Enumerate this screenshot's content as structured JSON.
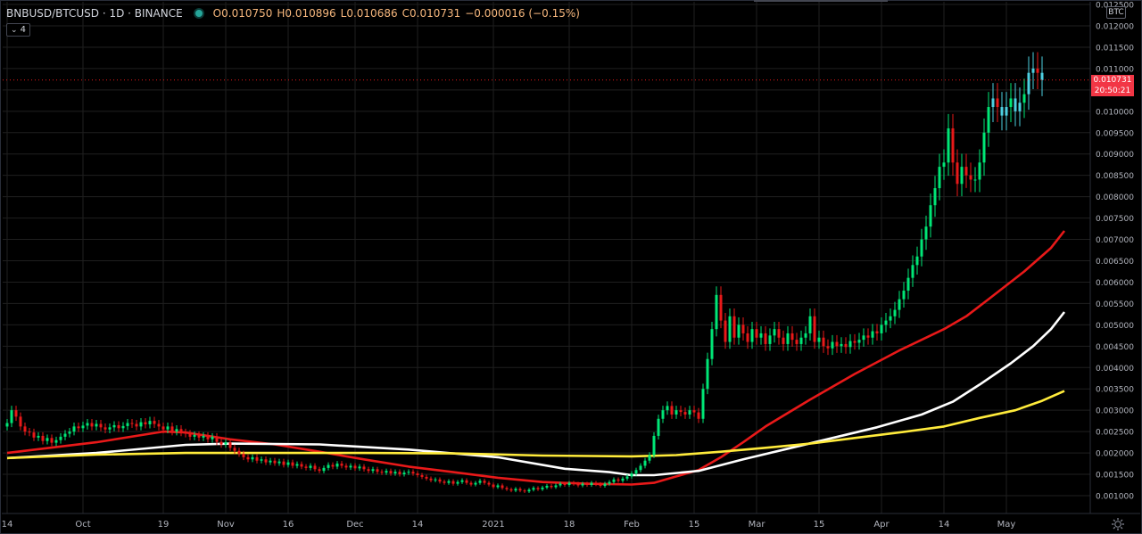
{
  "header": {
    "symbol": "BNBUSD/BTCUSD · 1D · BINANCE",
    "market_status_icon": "market-open-dot",
    "open": "O0.010750",
    "high": "H0.010896",
    "low": "L0.010686",
    "close": "C0.010731",
    "change": "−0.000016 (−0.15%)",
    "indicator_count": "4",
    "indicator_toggle_icon": "chevron-down-icon",
    "unit_label": "BTC"
  },
  "price_label": {
    "value": "0.010731",
    "countdown": "20:50:21"
  },
  "colors": {
    "background": "#000000",
    "up": "#00e676",
    "down": "#e81919",
    "recent": "#4dd0e1",
    "ma_red": "#e81919",
    "ma_white": "#ffffff",
    "ma_yellow": "#ffeb3b",
    "grid": "#1f1f1f"
  },
  "chart_data": {
    "type": "candlestick",
    "title": "BNBUSD/BTCUSD · 1D · BINANCE",
    "ylim": [
      0.0005,
      0.0126
    ],
    "y_ticks": [
      "0.001000",
      "0.001500",
      "0.002000",
      "0.002500",
      "0.003000",
      "0.003500",
      "0.004000",
      "0.004500",
      "0.005000",
      "0.005500",
      "0.006000",
      "0.006500",
      "0.007000",
      "0.007500",
      "0.008000",
      "0.008500",
      "0.009000",
      "0.009500",
      "0.010000",
      "0.010500",
      "0.011000",
      "0.011500",
      "0.012000",
      "0.012500"
    ],
    "x_tick_labels": [
      "14",
      "Oct",
      "19",
      "Nov",
      "16",
      "Dec",
      "14",
      "2021",
      "18",
      "Feb",
      "15",
      "Mar",
      "15",
      "Apr",
      "14",
      "May"
    ],
    "x_tick_indices": [
      0,
      17,
      35,
      49,
      63,
      78,
      92,
      109,
      126,
      140,
      154,
      168,
      182,
      196,
      210,
      224
    ],
    "last_price": 0.010731,
    "grid": true,
    "close": [
      0.0027,
      0.003,
      0.00285,
      0.00262,
      0.0025,
      0.00248,
      0.00236,
      0.0024,
      0.00228,
      0.00235,
      0.00224,
      0.0023,
      0.00238,
      0.00245,
      0.0025,
      0.00262,
      0.00258,
      0.00264,
      0.0027,
      0.00262,
      0.00268,
      0.0026,
      0.00255,
      0.0026,
      0.00265,
      0.00258,
      0.00263,
      0.0027,
      0.00268,
      0.00262,
      0.00272,
      0.00267,
      0.00275,
      0.00268,
      0.00262,
      0.00255,
      0.00262,
      0.0025,
      0.00256,
      0.00248,
      0.00245,
      0.00238,
      0.00242,
      0.00236,
      0.0024,
      0.00232,
      0.00238,
      0.00226,
      0.0022,
      0.00225,
      0.00212,
      0.00205,
      0.00198,
      0.0019,
      0.00185,
      0.0019,
      0.00182,
      0.00185,
      0.00178,
      0.00182,
      0.00176,
      0.0018,
      0.00172,
      0.00178,
      0.0017,
      0.00174,
      0.00168,
      0.00165,
      0.0017,
      0.00162,
      0.00158,
      0.00165,
      0.00172,
      0.00168,
      0.00175,
      0.0017,
      0.00166,
      0.0017,
      0.00164,
      0.00168,
      0.00162,
      0.00158,
      0.00162,
      0.00156,
      0.00154,
      0.00158,
      0.00152,
      0.00156,
      0.0015,
      0.00154,
      0.00156,
      0.00152,
      0.00148,
      0.00144,
      0.0014,
      0.00136,
      0.00138,
      0.00133,
      0.0013,
      0.00134,
      0.00128,
      0.00132,
      0.00136,
      0.0013,
      0.00126,
      0.0013,
      0.00135,
      0.0013,
      0.00126,
      0.0012,
      0.00124,
      0.00118,
      0.00115,
      0.00112,
      0.00116,
      0.00112,
      0.0011,
      0.00114,
      0.00118,
      0.00115,
      0.00119,
      0.00123,
      0.0012,
      0.00124,
      0.00128,
      0.00125,
      0.0013,
      0.00128,
      0.00124,
      0.00128,
      0.00125,
      0.0013,
      0.00127,
      0.00123,
      0.00128,
      0.00132,
      0.00138,
      0.00135,
      0.0014,
      0.00145,
      0.00152,
      0.0016,
      0.0017,
      0.00182,
      0.00195,
      0.0024,
      0.0028,
      0.003,
      0.0031,
      0.0029,
      0.003,
      0.00296,
      0.0029,
      0.003,
      0.00295,
      0.0028,
      0.0035,
      0.0042,
      0.0049,
      0.0057,
      0.0051,
      0.0046,
      0.0052,
      0.0047,
      0.005,
      0.0048,
      0.0046,
      0.0049,
      0.0047,
      0.0048,
      0.00455,
      0.00475,
      0.0049,
      0.0047,
      0.00455,
      0.0048,
      0.00465,
      0.00455,
      0.0047,
      0.0048,
      0.0052,
      0.0046,
      0.0047,
      0.0045,
      0.00445,
      0.0046,
      0.0045,
      0.00455,
      0.00448,
      0.00462,
      0.00458,
      0.00465,
      0.00475,
      0.0047,
      0.00485,
      0.0048,
      0.005,
      0.0051,
      0.0052,
      0.00535,
      0.0056,
      0.0058,
      0.0061,
      0.0064,
      0.0066,
      0.007,
      0.0073,
      0.0078,
      0.0082,
      0.0087,
      0.0088,
      0.0096,
      0.0088,
      0.0083,
      0.0087,
      0.0085,
      0.0084,
      0.0084,
      0.0088,
      0.0095,
      0.0101,
      0.0103,
      0.0101,
      0.0099,
      0.0101,
      0.0103,
      0.01,
      0.0102,
      0.0104,
      0.0109,
      0.011,
      0.0109,
      0.01073
    ],
    "series": [
      {
        "name": "",
        "color": "#e81919",
        "points": [
          [
            0,
            0.002
          ],
          [
            20,
            0.00225
          ],
          [
            35,
            0.0025
          ],
          [
            40,
            0.00248
          ],
          [
            50,
            0.00232
          ],
          [
            60,
            0.0022
          ],
          [
            70,
            0.00203
          ],
          [
            80,
            0.00185
          ],
          [
            90,
            0.00168
          ],
          [
            100,
            0.00155
          ],
          [
            110,
            0.00142
          ],
          [
            120,
            0.00132
          ],
          [
            130,
            0.00128
          ],
          [
            140,
            0.00126
          ],
          [
            145,
            0.0013
          ],
          [
            150,
            0.00145
          ],
          [
            155,
            0.0016
          ],
          [
            160,
            0.0019
          ],
          [
            165,
            0.00225
          ],
          [
            170,
            0.00262
          ],
          [
            180,
            0.00325
          ],
          [
            190,
            0.00385
          ],
          [
            200,
            0.0044
          ],
          [
            210,
            0.0049
          ],
          [
            215,
            0.0052
          ],
          [
            220,
            0.0056
          ],
          [
            228,
            0.00625
          ],
          [
            234,
            0.0068
          ],
          [
            237,
            0.0072
          ]
        ]
      },
      {
        "name": "",
        "color": "#ffffff",
        "points": [
          [
            0,
            0.00188
          ],
          [
            20,
            0.002
          ],
          [
            40,
            0.00219
          ],
          [
            50,
            0.00222
          ],
          [
            70,
            0.0022
          ],
          [
            90,
            0.00208
          ],
          [
            110,
            0.0019
          ],
          [
            125,
            0.00163
          ],
          [
            135,
            0.00155
          ],
          [
            140,
            0.00148
          ],
          [
            145,
            0.00148
          ],
          [
            155,
            0.00158
          ],
          [
            165,
            0.00185
          ],
          [
            175,
            0.0021
          ],
          [
            185,
            0.00235
          ],
          [
            195,
            0.0026
          ],
          [
            205,
            0.0029
          ],
          [
            212,
            0.0032
          ],
          [
            218,
            0.0036
          ],
          [
            225,
            0.0041
          ],
          [
            230,
            0.0045
          ],
          [
            234,
            0.0049
          ],
          [
            237,
            0.0053
          ]
        ]
      },
      {
        "name": "",
        "color": "#ffeb3b",
        "points": [
          [
            0,
            0.00188
          ],
          [
            20,
            0.00196
          ],
          [
            40,
            0.002
          ],
          [
            60,
            0.002
          ],
          [
            80,
            0.002
          ],
          [
            100,
            0.00199
          ],
          [
            120,
            0.00194
          ],
          [
            140,
            0.00192
          ],
          [
            150,
            0.00195
          ],
          [
            160,
            0.00203
          ],
          [
            170,
            0.00212
          ],
          [
            180,
            0.00222
          ],
          [
            190,
            0.00235
          ],
          [
            200,
            0.00248
          ],
          [
            210,
            0.00262
          ],
          [
            218,
            0.00282
          ],
          [
            226,
            0.003
          ],
          [
            232,
            0.00322
          ],
          [
            237,
            0.00345
          ]
        ]
      }
    ]
  }
}
